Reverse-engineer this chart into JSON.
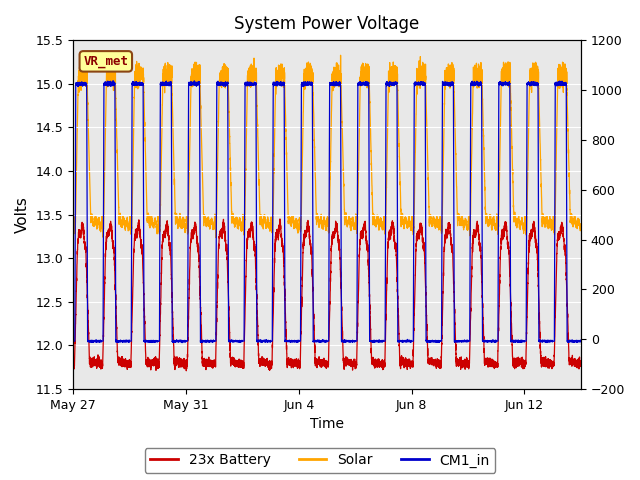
{
  "title": "System Power Voltage",
  "xlabel": "Time",
  "ylabel": "Volts",
  "ylim_left": [
    11.5,
    15.5
  ],
  "ylim_right": [
    -200,
    1200
  ],
  "yticks_left": [
    11.5,
    12.0,
    12.5,
    13.0,
    13.5,
    14.0,
    14.5,
    15.0,
    15.5
  ],
  "yticks_right": [
    -200,
    0,
    200,
    400,
    600,
    800,
    1000,
    1200
  ],
  "xtick_labels": [
    "May 27",
    "May 31",
    "Jun 4",
    "Jun 8",
    "Jun 12"
  ],
  "xtick_positions": [
    0,
    4,
    8,
    12,
    16
  ],
  "annotation_text": "VR_met",
  "annotation_color": "#8B0000",
  "annotation_bg": "#FFFF99",
  "annotation_border": "#8B4513",
  "plot_bg": "#E8E8E8",
  "fig_bg": "#FFFFFF",
  "line_colors": {
    "battery": "#CC0000",
    "solar": "#FFA500",
    "cm1": "#0000CC"
  },
  "legend_labels": [
    "23x Battery",
    "Solar",
    "CM1_in"
  ],
  "total_days": 18.0,
  "num_cycles": 18
}
